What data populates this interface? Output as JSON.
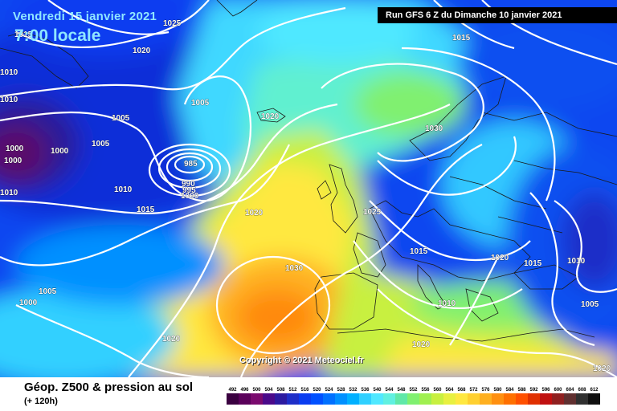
{
  "header": {
    "date": "Vendredi 15 janvier 2021",
    "time": "7:00 locale",
    "run": "Run GFS 6 Z du Dimanche 10 janvier 2021"
  },
  "footer": {
    "title": "Géop. Z500 & pression au sol",
    "subtitle": "(+ 120h)",
    "copyright": "Copyright © 2021 Meteociel.fr"
  },
  "scale": {
    "values": [
      "492",
      "496",
      "500",
      "504",
      "508",
      "512",
      "516",
      "520",
      "524",
      "528",
      "532",
      "536",
      "540",
      "544",
      "548",
      "552",
      "556",
      "560",
      "564",
      "568",
      "572",
      "576",
      "580",
      "584",
      "588",
      "592",
      "596",
      "600",
      "604",
      "608",
      "612"
    ],
    "colors": [
      "#3a0040",
      "#5a005a",
      "#7a0a6e",
      "#4b0a8a",
      "#2c1aa0",
      "#1e2ec8",
      "#0a3cf0",
      "#0050ff",
      "#0070ff",
      "#0090ff",
      "#00b0ff",
      "#30d0ff",
      "#50e8ff",
      "#60f0e0",
      "#60e8a8",
      "#80f070",
      "#a0f050",
      "#c8f040",
      "#e8f040",
      "#ffe840",
      "#ffd030",
      "#ffb020",
      "#ff9010",
      "#ff7000",
      "#ff5000",
      "#e03000",
      "#c01010",
      "#902020",
      "#603030",
      "#303030",
      "#101010"
    ]
  },
  "isobars": [
    {
      "text": "1025"
    },
    {
      "text": "1020"
    },
    {
      "text": "1015"
    },
    {
      "text": "1010"
    },
    {
      "text": "1005"
    },
    {
      "text": "1005"
    },
    {
      "text": "1000"
    },
    {
      "text": "1000"
    },
    {
      "text": "1000"
    },
    {
      "text": "1005"
    },
    {
      "text": "985"
    },
    {
      "text": "990"
    },
    {
      "text": "995"
    },
    {
      "text": "1000"
    },
    {
      "text": "1010"
    },
    {
      "text": "1015"
    },
    {
      "text": "1010"
    },
    {
      "text": "1020"
    },
    {
      "text": "1020"
    },
    {
      "text": "1030"
    },
    {
      "text": "1025"
    },
    {
      "text": "1015"
    },
    {
      "text": "1020"
    },
    {
      "text": "1015"
    },
    {
      "text": "1010"
    },
    {
      "text": "1005"
    },
    {
      "text": "1005"
    },
    {
      "text": "1000"
    },
    {
      "text": "1030"
    },
    {
      "text": "1010"
    },
    {
      "text": "1020"
    },
    {
      "text": "1020"
    },
    {
      "text": "1020"
    },
    {
      "text": "1015"
    },
    {
      "text": "1010"
    }
  ]
}
